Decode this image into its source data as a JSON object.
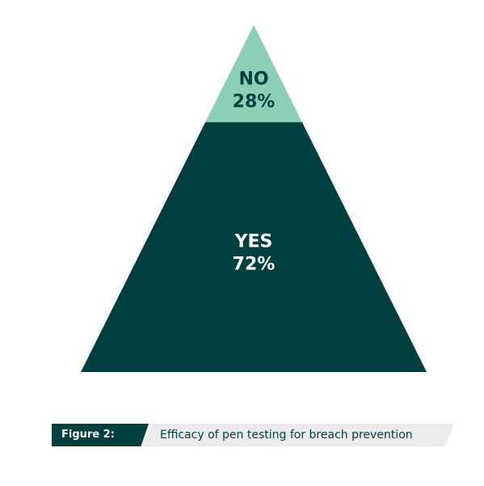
{
  "chart_data": {
    "type": "pyramid",
    "title": "",
    "segments": [
      {
        "name": "NO",
        "value": 28,
        "value_label": "28%",
        "color": "#8ccfb7",
        "text_color": "#003f3f"
      },
      {
        "name": "YES",
        "value": 72,
        "value_label": "72%",
        "color": "#003f3f",
        "text_color": "#ffffff"
      }
    ]
  },
  "caption": {
    "figure_label": "Figure 2:",
    "text": "Efficacy of pen testing for breach prevention"
  }
}
